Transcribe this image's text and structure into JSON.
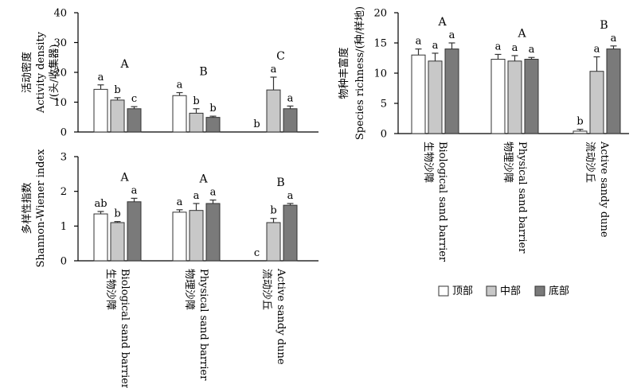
{
  "colors": {
    "top": "#ffffff",
    "middle": "#c8c8c8",
    "bottom": "#7a7a7a",
    "axis": "#000000"
  },
  "legend": {
    "items": [
      "顶部",
      "中部",
      "底部"
    ]
  },
  "categories": [
    {
      "zh": "生物沙障",
      "en": "Biological sand barrier"
    },
    {
      "zh": "物理沙障",
      "en": "Physical sand barrier"
    },
    {
      "zh": "流动沙丘",
      "en": "Active sandy dune"
    }
  ],
  "chart_data": [
    {
      "type": "bar",
      "ylabel_zh": "活动密度",
      "ylabel_en": "Activity density",
      "ylabel_unit": "/(头/收集器)",
      "ylim": [
        0,
        40
      ],
      "yticks": [
        0,
        10,
        20,
        30,
        40
      ],
      "categories": [
        "Biological sand barrier",
        "Physical sand barrier",
        "Active sandy dune"
      ],
      "series": [
        {
          "name": "顶部",
          "values": [
            14.3,
            12.2,
            0
          ],
          "errors": [
            1.5,
            1.0,
            0
          ],
          "letters": [
            "a",
            "a",
            "b"
          ]
        },
        {
          "name": "中部",
          "values": [
            10.7,
            6.3,
            14.1
          ],
          "errors": [
            0.8,
            1.5,
            4.3
          ],
          "letters": [
            "b",
            "b",
            "a"
          ]
        },
        {
          "name": "底部",
          "values": [
            7.8,
            4.9,
            7.8
          ],
          "errors": [
            0.7,
            0.4,
            0.9
          ],
          "letters": [
            "c",
            "b",
            "a"
          ]
        }
      ],
      "group_letters": [
        "A",
        "B",
        "C"
      ]
    },
    {
      "type": "bar",
      "ylabel_zh": "多样性指数",
      "ylabel_en": "Shannon-Wiener index",
      "ylim": [
        0,
        3
      ],
      "yticks": [
        0,
        1,
        2,
        3
      ],
      "categories": [
        "Biological sand barrier",
        "Physical sand barrier",
        "Active sandy dune"
      ],
      "series": [
        {
          "name": "顶部",
          "values": [
            1.35,
            1.4,
            0
          ],
          "errors": [
            0.07,
            0.07,
            0
          ],
          "letters": [
            "ab",
            "a",
            "c"
          ]
        },
        {
          "name": "中部",
          "values": [
            1.1,
            1.45,
            1.1
          ],
          "errors": [
            0.03,
            0.2,
            0.12
          ],
          "letters": [
            "b",
            "a",
            "b"
          ]
        },
        {
          "name": "底部",
          "values": [
            1.7,
            1.65,
            1.6
          ],
          "errors": [
            0.1,
            0.1,
            0.05
          ],
          "letters": [
            "a",
            "a",
            "a"
          ]
        }
      ],
      "group_letters": [
        "A",
        "A",
        "B"
      ]
    },
    {
      "type": "bar",
      "ylabel_zh": "物种丰富度",
      "ylabel_en": "Species richness",
      "ylabel_unit": "/(种/样地)",
      "ylim": [
        0,
        20
      ],
      "yticks": [
        0,
        5,
        10,
        15,
        20
      ],
      "categories": [
        "Biological sand barrier",
        "Physical sand barrier",
        "Active sandy dune"
      ],
      "series": [
        {
          "name": "顶部",
          "values": [
            13.0,
            12.3,
            0.4
          ],
          "errors": [
            1.0,
            0.8,
            0.3
          ],
          "letters": [
            "a",
            "a",
            "b"
          ]
        },
        {
          "name": "中部",
          "values": [
            12.0,
            12.0,
            10.3
          ],
          "errors": [
            1.3,
            0.9,
            2.4
          ],
          "letters": [
            "a",
            "a",
            "a"
          ]
        },
        {
          "name": "底部",
          "values": [
            14.0,
            12.3,
            14.0
          ],
          "errors": [
            1.0,
            0.3,
            0.5
          ],
          "letters": [
            "a",
            "a",
            "a"
          ]
        }
      ],
      "group_letters": [
        "A",
        "A",
        "B"
      ]
    }
  ]
}
